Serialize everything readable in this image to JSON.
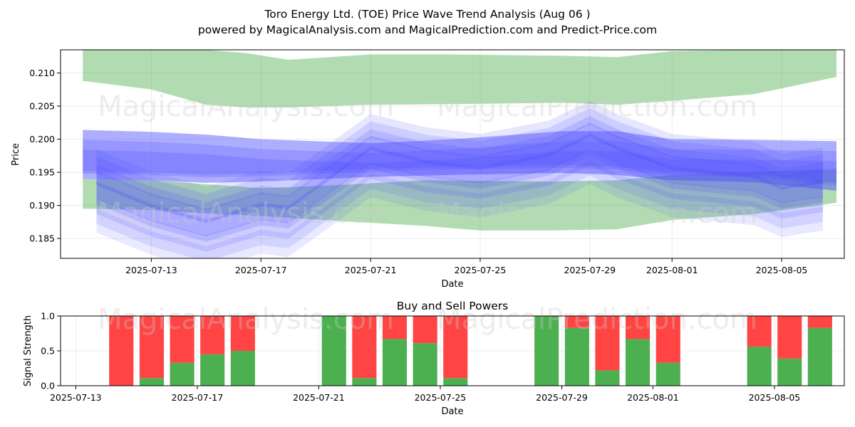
{
  "title_line1": "Toro Energy Ltd. (TOE) Price Wave Trend Analysis (Aug 06 )",
  "title_line2": "powered by MagicalAnalysis.com and MagicalPrediction.com and Predict-Price.com",
  "watermarks": [
    "MagicalAnalysis.com",
    "MagicalPrediction.com"
  ],
  "colors": {
    "green_band": "#2ca02c",
    "blue_band": "#4b4bff",
    "buy": "#4caf50",
    "sell": "#ff4444"
  },
  "chart_data": [
    {
      "type": "area",
      "title": "",
      "xlabel": "Date",
      "ylabel": "Price",
      "xlim": [
        "2025-07-10",
        "2025-08-07"
      ],
      "ylim": [
        0.182,
        0.2135
      ],
      "x_ticks": [
        "2025-07-13",
        "2025-07-17",
        "2025-07-21",
        "2025-07-25",
        "2025-07-29",
        "2025-08-01",
        "2025-08-05"
      ],
      "y_ticks": [
        0.185,
        0.19,
        0.195,
        0.2,
        0.205,
        0.21
      ],
      "y_tick_labels": [
        "0.185",
        "0.190",
        "0.195",
        "0.200",
        "0.205",
        "0.210"
      ],
      "bands": [
        {
          "name": "green upper band",
          "color": "green",
          "opacity": 0.37,
          "x": [
            "2025-07-10.5",
            "2025-07-13",
            "2025-07-15",
            "2025-07-16.5",
            "2025-07-18",
            "2025-07-21",
            "2025-07-24",
            "2025-07-28",
            "2025-07-30",
            "2025-08-01",
            "2025-08-04",
            "2025-08-07"
          ],
          "upper": [
            0.2135,
            0.2135,
            0.2135,
            0.213,
            0.212,
            0.2128,
            0.2128,
            0.2126,
            0.2124,
            0.2133,
            0.2135,
            0.2135
          ],
          "lower": [
            0.2088,
            0.2075,
            0.2052,
            0.2048,
            0.2048,
            0.2052,
            0.2053,
            0.2055,
            0.2052,
            0.2058,
            0.2068,
            0.2094
          ]
        },
        {
          "name": "green lower band",
          "color": "green",
          "opacity": 0.37,
          "x": [
            "2025-07-10.5",
            "2025-07-13",
            "2025-07-15",
            "2025-07-17",
            "2025-07-20",
            "2025-07-23",
            "2025-07-25",
            "2025-07-27.5",
            "2025-07-30",
            "2025-08-01",
            "2025-08-04",
            "2025-08-07"
          ],
          "upper": [
            0.194,
            0.1938,
            0.1932,
            0.1926,
            0.1931,
            0.1938,
            0.1937,
            0.1936,
            0.1938,
            0.1946,
            0.1951,
            0.1955
          ],
          "lower": [
            0.1895,
            0.1893,
            0.1888,
            0.1884,
            0.1876,
            0.1869,
            0.1862,
            0.1862,
            0.1864,
            0.1878,
            0.1887,
            0.1904
          ]
        },
        {
          "name": "blue upper band",
          "color": "blue",
          "opacity": 0.45,
          "x": [
            "2025-07-10.5",
            "2025-07-13",
            "2025-07-15",
            "2025-07-17",
            "2025-07-21",
            "2025-07-24",
            "2025-07-28",
            "2025-07-30",
            "2025-08-01",
            "2025-08-04",
            "2025-08-07"
          ],
          "upper": [
            0.2014,
            0.2011,
            0.2007,
            0.2,
            0.1994,
            0.2,
            0.2012,
            0.2012,
            0.2,
            0.1999,
            0.1997
          ],
          "lower": [
            0.194,
            0.1938,
            0.1934,
            0.1936,
            0.1943,
            0.1946,
            0.1949,
            0.1946,
            0.1938,
            0.1935,
            0.1922
          ]
        }
      ],
      "wave_paths": [
        {
          "name": "central blue wave",
          "x": [
            "2025-07-11",
            "2025-07-13",
            "2025-07-15",
            "2025-07-17",
            "2025-07-18",
            "2025-07-21",
            "2025-07-23",
            "2025-07-25",
            "2025-07-27.5",
            "2025-07-29",
            "2025-07-30",
            "2025-08-01",
            "2025-08-04",
            "2025-08-05",
            "2025-08-06.5"
          ],
          "y": [
            0.1932,
            0.1898,
            0.1875,
            0.19,
            0.1895,
            0.1985,
            0.1965,
            0.1955,
            0.1975,
            0.2005,
            0.1985,
            0.1955,
            0.1943,
            0.1925,
            0.1935
          ]
        }
      ]
    },
    {
      "type": "bar",
      "title": "Buy and Sell Powers",
      "xlabel": "Date",
      "ylabel": "Signal Strength",
      "ylim": [
        0,
        1.0
      ],
      "y_ticks": [
        0.0,
        0.5,
        1.0
      ],
      "y_tick_labels": [
        "0.0",
        "0.5",
        "1.0"
      ],
      "x_ticks": [
        "2025-07-13",
        "2025-07-17",
        "2025-07-21",
        "2025-07-25",
        "2025-07-29",
        "2025-08-01",
        "2025-08-05"
      ],
      "categories": [
        "2025-07-14",
        "2025-07-15",
        "2025-07-16",
        "2025-07-17",
        "2025-07-18",
        "2025-07-21",
        "2025-07-22",
        "2025-07-23",
        "2025-07-24",
        "2025-07-25",
        "2025-07-28",
        "2025-07-29",
        "2025-07-30",
        "2025-07-31",
        "2025-08-01",
        "2025-08-04",
        "2025-08-05",
        "2025-08-06"
      ],
      "series": [
        {
          "name": "Buy",
          "color": "buy",
          "values": [
            0.0,
            0.11,
            0.33,
            0.45,
            0.5,
            1.0,
            0.11,
            0.67,
            0.61,
            0.11,
            1.0,
            0.83,
            0.22,
            0.67,
            0.33,
            0.56,
            0.39,
            0.83
          ]
        },
        {
          "name": "Sell",
          "color": "sell",
          "values": [
            1.0,
            0.89,
            0.67,
            0.55,
            0.5,
            0.0,
            0.89,
            0.33,
            0.39,
            0.89,
            0.0,
            0.17,
            0.78,
            0.33,
            0.67,
            0.44,
            0.61,
            0.17
          ]
        }
      ]
    }
  ]
}
